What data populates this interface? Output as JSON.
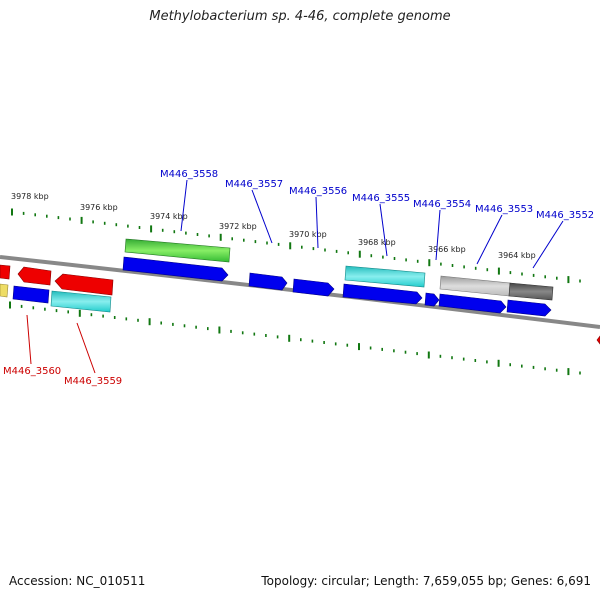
{
  "figure": {
    "title": "Methylobacterium sp. 4-46, complete genome",
    "accession_text": "Accession: NC_010511",
    "topology_text": "Topology: circular; Length: 7,659,055 bp; Genes: 6,691"
  },
  "scale": {
    "kbp_labels": [
      "3978 kbp",
      "3976 kbp",
      "3974 kbp",
      "3972 kbp",
      "3970 kbp",
      "3968 kbp",
      "3966 kbp",
      "3964 kbp"
    ]
  },
  "genes": {
    "forward_labels": [
      "M446_3558",
      "M446_3557",
      "M446_3556",
      "M446_3555",
      "M446_3554",
      "M446_3553",
      "M446_3552"
    ],
    "reverse_labels": [
      "M446_3560",
      "M446_3559"
    ],
    "forward_label_color": "#0000cc",
    "reverse_label_color": "#cc0000"
  },
  "colors": {
    "blue": "#0000ee",
    "red": "#ee0000",
    "green": "#33bb33",
    "cyan": "#22cccc",
    "gray": "#bbbbbb",
    "dark_gray": "#555555",
    "yellow": "#eedd66",
    "tick_green": "#117711",
    "backbone": "#888888"
  }
}
